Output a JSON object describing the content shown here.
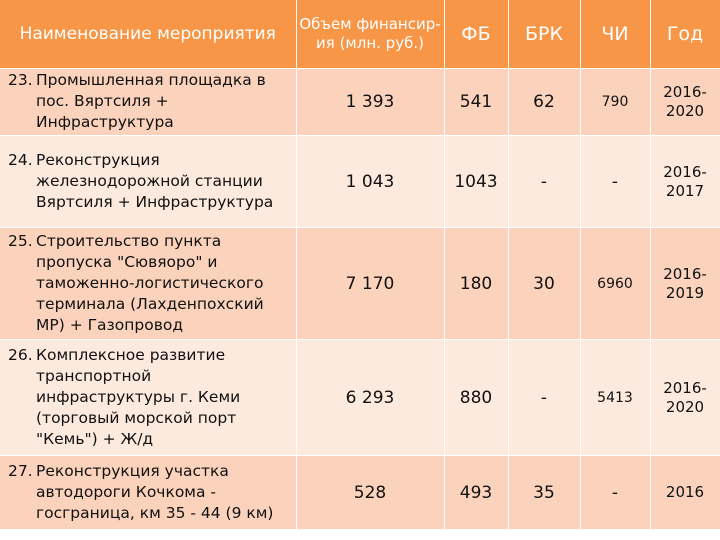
{
  "table": {
    "headers": {
      "name": "Наименование мероприятия",
      "volume": "Объем финансир-ия (млн. руб.)",
      "fb": "ФБ",
      "brk": "БРК",
      "chi": "ЧИ",
      "year": "Год"
    },
    "rows": [
      {
        "number": "23.",
        "name": "Промышленная площадка в пос. Вяртсиля + Инфраструктура",
        "volume": "1 393",
        "fb": "541",
        "brk": "62",
        "chi": "790",
        "year": "2016-2020"
      },
      {
        "number": "24.",
        "name": "Реконструкция железнодорожной станции Вяртсиля + Инфраструктура",
        "volume": "1 043",
        "fb": "1043",
        "brk": "-",
        "chi": "-",
        "year": "2016-2017"
      },
      {
        "number": "25.",
        "name": "Строительство пункта пропуска \"Сювяоро\" и таможенно-логистического терминала (Лахденпохский МР) + Газопровод",
        "volume": "7 170",
        "fb": "180",
        "brk": "30",
        "chi": "6960",
        "year": "2016-2019"
      },
      {
        "number": "26.",
        "name": "Комплексное развитие транспортной инфраструктуры г. Кеми (торговый морской порт \"Кемь\") + Ж/д",
        "volume": "6 293",
        "fb": "880",
        "brk": "-",
        "chi": "5413",
        "year": "2016-2020"
      },
      {
        "number": "27.",
        "name": "Реконструкция участка автодороги Кочкома - госграница, км 35 - 44 (9 км)",
        "volume": "528",
        "fb": "493",
        "brk": "35",
        "chi": "-",
        "year": "2016"
      }
    ]
  }
}
